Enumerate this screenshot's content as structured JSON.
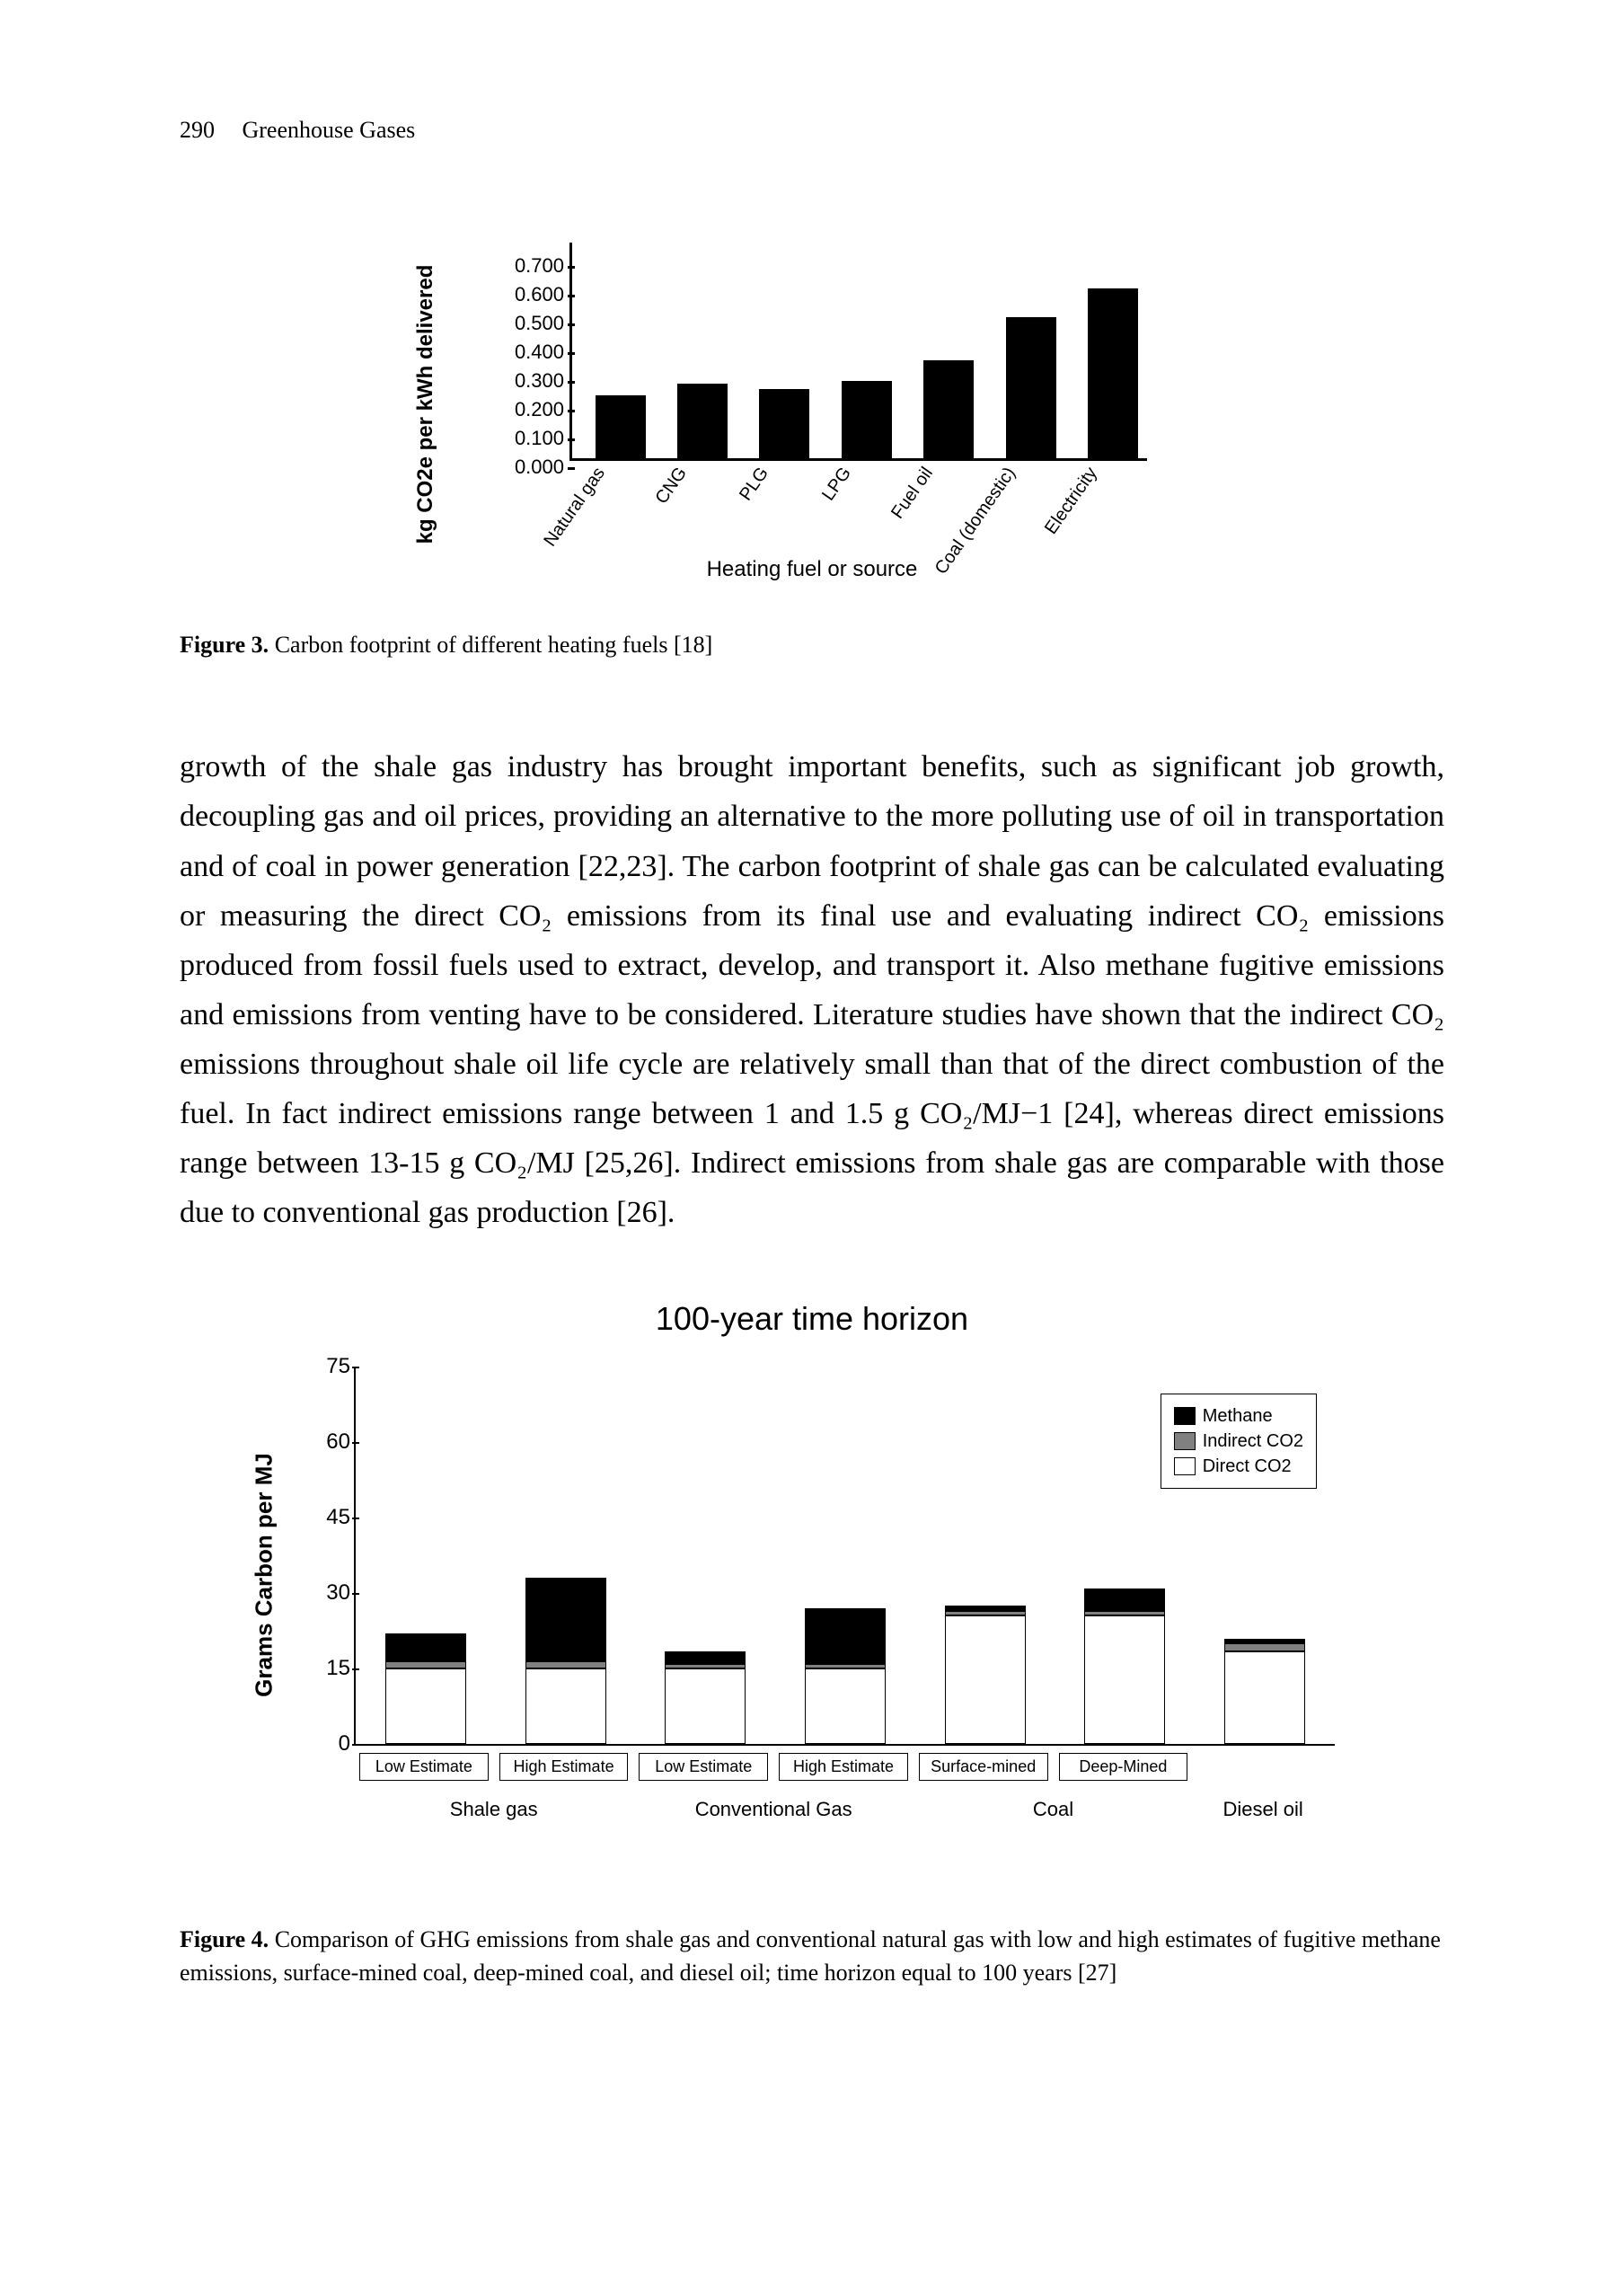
{
  "page": {
    "number": "290",
    "running_title": "Greenhouse Gases"
  },
  "figure3": {
    "type": "bar",
    "y_label": "kg CO2e per kWh delivered",
    "x_label": "Heating fuel or source",
    "y_ticks": [
      "0.000",
      "0.100",
      "0.200",
      "0.300",
      "0.400",
      "0.500",
      "0.600",
      "0.700"
    ],
    "ylim": [
      0,
      0.75
    ],
    "categories": [
      "Natural gas",
      "CNG",
      "PLG",
      "LPG",
      "Fuel oil",
      "Coal (domestic)",
      "Electricity"
    ],
    "values": [
      0.22,
      0.26,
      0.24,
      0.27,
      0.34,
      0.49,
      0.59
    ],
    "bar_color": "#000000",
    "axis_color": "#000000",
    "font_family": "Arial",
    "tick_fontsize": 22,
    "label_fontsize": 24,
    "caption_label": "Figure 3.",
    "caption_text": " Carbon footprint of different heating fuels [18]"
  },
  "body": {
    "paragraph": "growth of the shale gas industry has brought important benefits, such as significant job growth, decoupling gas and oil prices, providing an alternative to the more polluting use of oil in transportation and of coal in power generation [22,23]. The carbon footprint of shale gas can be calculated evaluating or measuring the direct CO₂ emissions from its final use and evaluating indirect CO₂ emissions produced from fossil fuels used to extract, develop, and transport it. Also methane fugitive emissions and emissions from venting have to be considered. Literature studies have shown that the indirect CO₂ emissions throughout shale oil life cycle are relatively small than that of the direct combustion of the fuel. In fact indirect emissions range between 1 and 1.5 g CO₂/MJ−1 [24], whereas direct emissions range between 13-15 g CO₂/MJ [25,26]. Indirect emissions from shale gas are comparable with those due to conventional gas production [26]."
  },
  "figure4": {
    "type": "stacked-bar",
    "title": "100-year time horizon",
    "y_label": "Grams Carbon per MJ",
    "y_ticks": [
      "0",
      "15",
      "30",
      "45",
      "60",
      "75"
    ],
    "ylim": [
      0,
      75
    ],
    "legend": [
      {
        "label": "Methane",
        "color": "#000000",
        "border": "#000000"
      },
      {
        "label": "Indirect CO2",
        "color": "#808080",
        "border": "#000000"
      },
      {
        "label": "Direct CO2",
        "color": "#ffffff",
        "border": "#000000"
      }
    ],
    "groups": [
      {
        "label": "Shale gas",
        "sub": [
          "Low Estimate",
          "High Estimate"
        ]
      },
      {
        "label": "Conventional Gas",
        "sub": [
          "Low Estimate",
          "High Estimate"
        ]
      },
      {
        "label": "Coal",
        "sub": [
          "Surface-mined",
          "Deep-Mined"
        ]
      },
      {
        "label": "Diesel oil",
        "sub": []
      }
    ],
    "bars": [
      {
        "sub": "Low Estimate",
        "direct": 15,
        "indirect": 1.5,
        "methane": 5.5
      },
      {
        "sub": "High Estimate",
        "direct": 15,
        "indirect": 1.5,
        "methane": 16.5
      },
      {
        "sub": "Low Estimate",
        "direct": 15,
        "indirect": 1.0,
        "methane": 2.5
      },
      {
        "sub": "High Estimate",
        "direct": 15,
        "indirect": 1.0,
        "methane": 11
      },
      {
        "sub": "Surface-mined",
        "direct": 25.5,
        "indirect": 1.0,
        "methane": 1.0
      },
      {
        "sub": "Deep-Mined",
        "direct": 25.5,
        "indirect": 1.0,
        "methane": 4.5
      },
      {
        "sub": "",
        "direct": 18.5,
        "indirect": 1.5,
        "methane": 1.0
      }
    ],
    "colors": {
      "direct": "#ffffff",
      "indirect": "#808080",
      "methane": "#000000",
      "border": "#000000"
    },
    "axis_color": "#000000",
    "caption_label": "Figure 4.",
    "caption_text": " Comparison of GHG emissions from shale gas and conventional natural gas with low and high estimates of fugitive methane emissions, surface-mined coal, deep-mined coal, and diesel oil; time horizon equal to 100 years [27]"
  }
}
